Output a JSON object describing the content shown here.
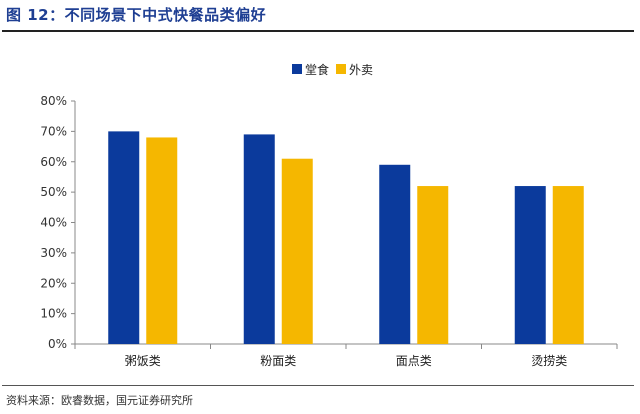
{
  "header": {
    "title": "图 12：不同场景下中式快餐品类偏好"
  },
  "footer": {
    "source": "资料来源：欧睿数据，国元证券研究所"
  },
  "colors": {
    "堂食": "#0b3a9c",
    "外卖": "#f5b700",
    "axis": "#888888",
    "title": "#1f3f93"
  },
  "chart_data": {
    "type": "bar",
    "title": "",
    "xlabel": "",
    "ylabel": "",
    "categories": [
      "粥饭类",
      "粉面类",
      "面点类",
      "烫捞类"
    ],
    "series": [
      {
        "name": "堂食",
        "values": [
          70,
          69,
          59,
          52
        ]
      },
      {
        "name": "外卖",
        "values": [
          68,
          61,
          52,
          52
        ]
      }
    ],
    "ylim": [
      0,
      80
    ],
    "ytick_step": 10,
    "ytick_labels": [
      "0%",
      "10%",
      "20%",
      "30%",
      "40%",
      "50%",
      "60%",
      "70%",
      "80%"
    ],
    "grid": false,
    "legend_position": "top-center"
  }
}
